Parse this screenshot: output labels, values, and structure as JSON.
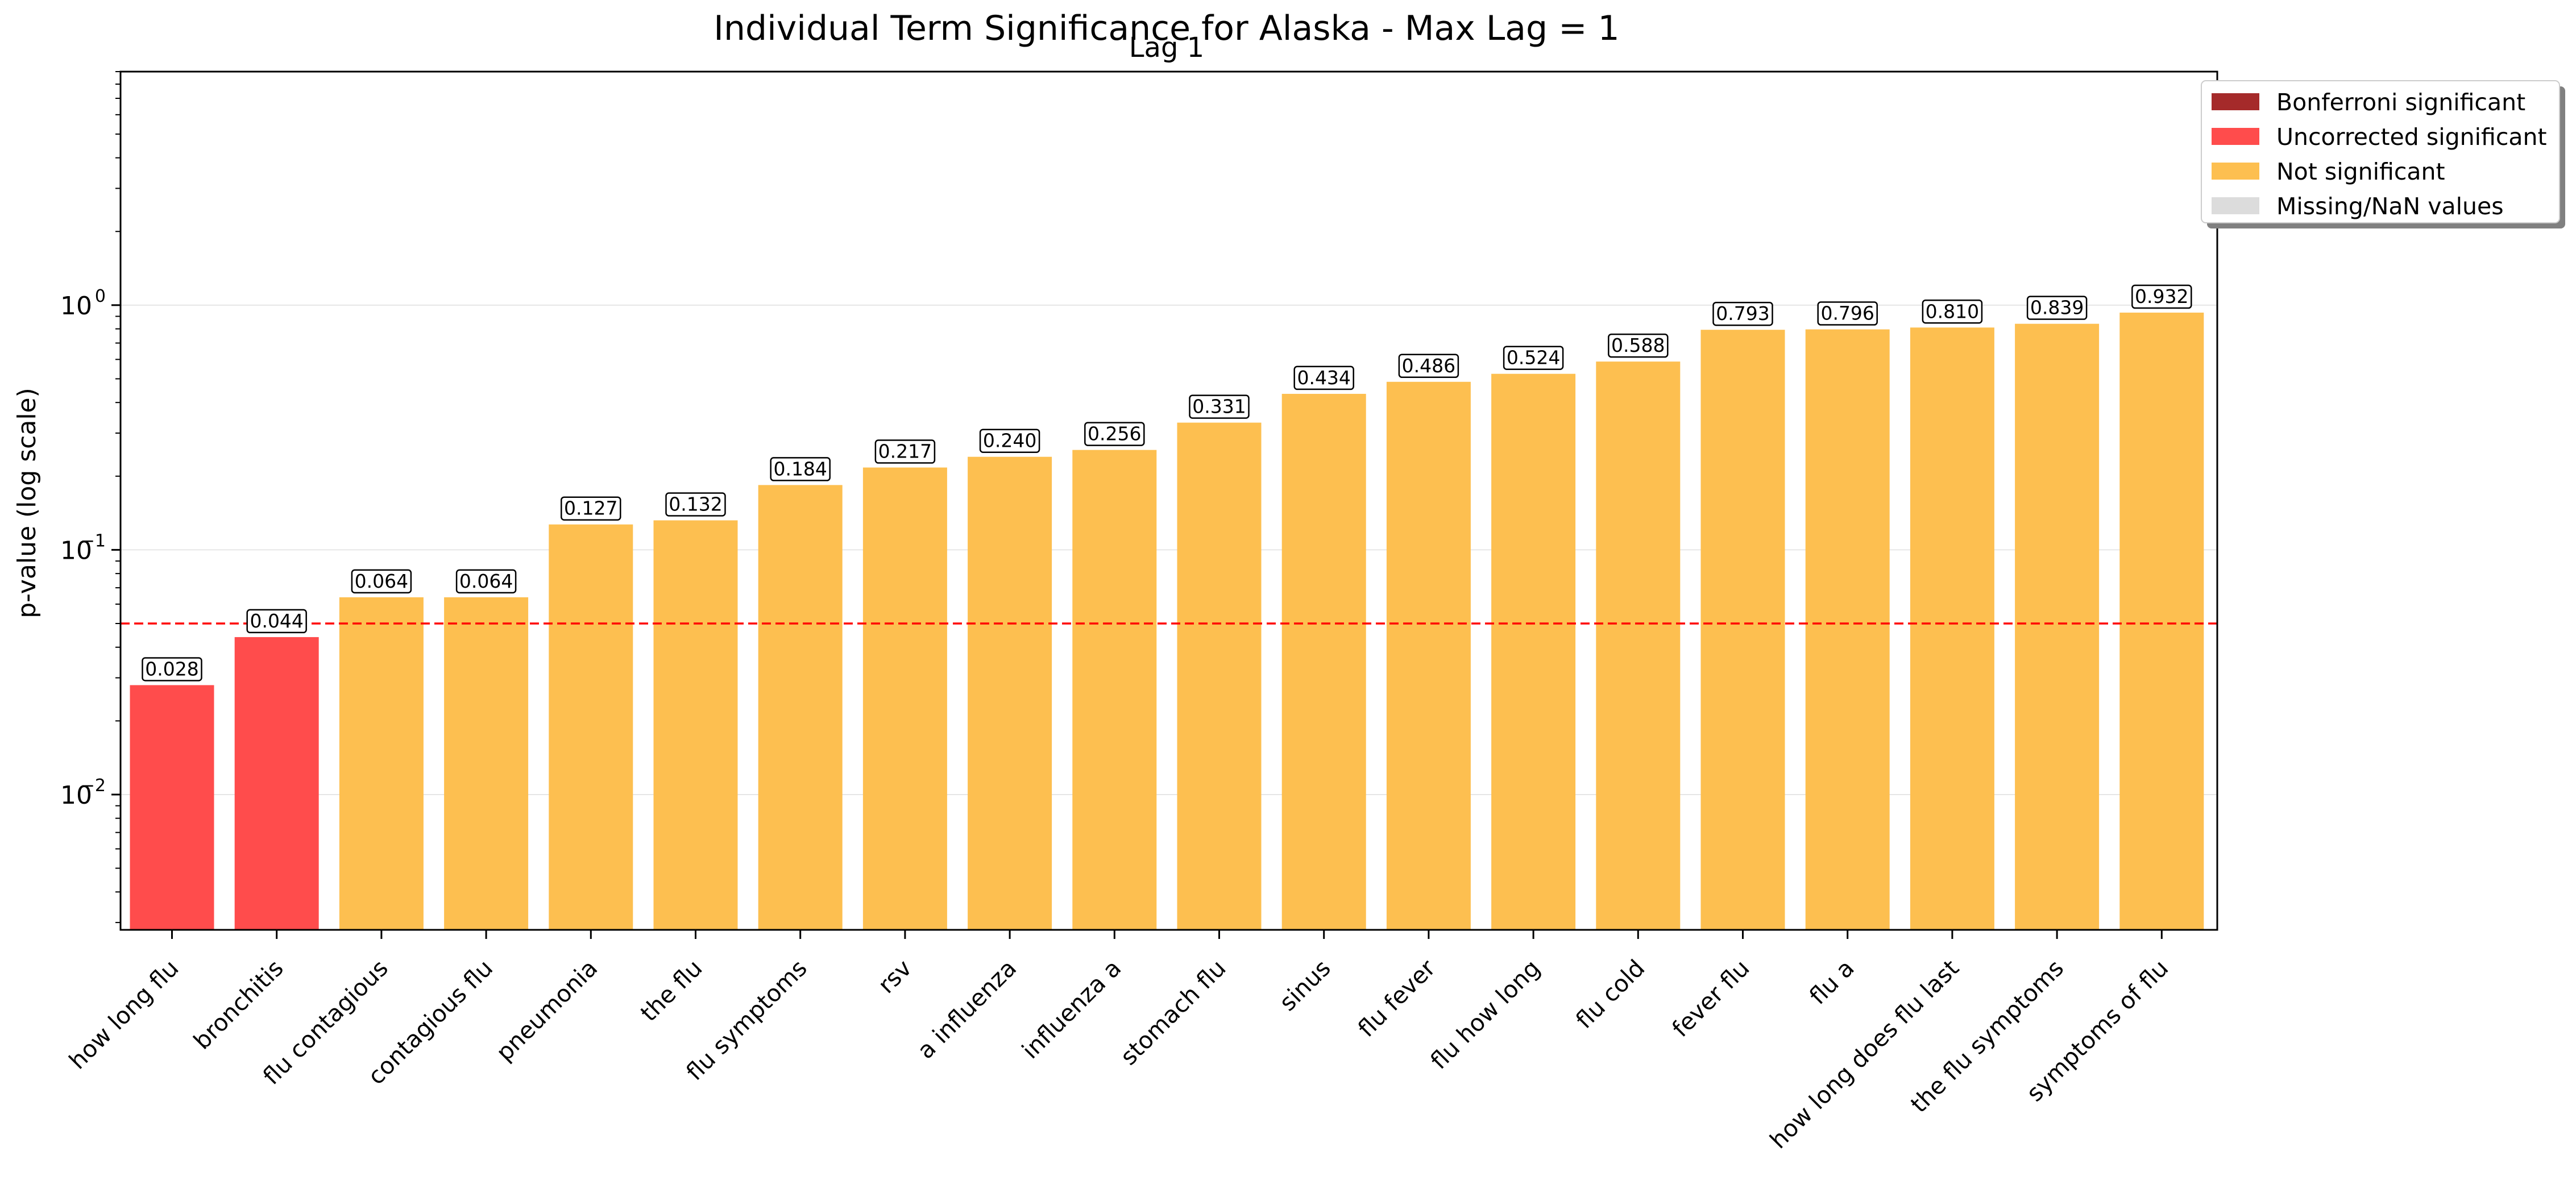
{
  "chart_data": {
    "type": "bar",
    "title": "Individual Term Significance for Alaska - Max Lag = 1",
    "subtitle": "Lag 1",
    "xlabel": "",
    "ylabel": "p-value (log scale)",
    "yscale": "log",
    "ylim": [
      0.0028,
      9.0
    ],
    "yticks": [
      {
        "value": 0.01,
        "base": "10",
        "exp": "−2"
      },
      {
        "value": 0.1,
        "base": "10",
        "exp": "−1"
      },
      {
        "value": 1,
        "base": "10",
        "exp": "0"
      }
    ],
    "grid": "horizontal",
    "threshold": {
      "value": 0.05,
      "color": "#ff0000",
      "style": "dashed"
    },
    "categories": [
      "how long flu",
      "bronchitis",
      "flu contagious",
      "contagious flu",
      "pneumonia",
      "the flu",
      "flu symptoms",
      "rsv",
      "a influenza",
      "influenza a",
      "stomach flu",
      "sinus",
      "flu fever",
      "flu how long",
      "flu cold",
      "fever flu",
      "flu a",
      "how long does flu last",
      "the flu symptoms",
      "symptoms of flu"
    ],
    "values": [
      0.028,
      0.044,
      0.064,
      0.064,
      0.127,
      0.132,
      0.184,
      0.217,
      0.24,
      0.256,
      0.331,
      0.434,
      0.486,
      0.524,
      0.588,
      0.793,
      0.796,
      0.81,
      0.839,
      0.932
    ],
    "data_labels": [
      "0.028",
      "0.044",
      "0.064",
      "0.064",
      "0.127",
      "0.132",
      "0.184",
      "0.217",
      "0.240",
      "0.256",
      "0.331",
      "0.434",
      "0.486",
      "0.524",
      "0.588",
      "0.793",
      "0.796",
      "0.810",
      "0.839",
      "0.932"
    ],
    "status": [
      "uncorrected",
      "uncorrected",
      "not",
      "not",
      "not",
      "not",
      "not",
      "not",
      "not",
      "not",
      "not",
      "not",
      "not",
      "not",
      "not",
      "not",
      "not",
      "not",
      "not",
      "not"
    ],
    "colors": {
      "bonferroni": "#a52a2a",
      "uncorrected": "#ff4c4c",
      "not": "#fdbf50",
      "missing": "#dcdcdc"
    },
    "legend": {
      "placement": "top-right, outside plot",
      "items": [
        {
          "key": "bonferroni",
          "label": "Bonferroni significant"
        },
        {
          "key": "uncorrected",
          "label": "Uncorrected significant"
        },
        {
          "key": "not",
          "label": "Not significant"
        },
        {
          "key": "missing",
          "label": "Missing/NaN values"
        }
      ]
    }
  }
}
